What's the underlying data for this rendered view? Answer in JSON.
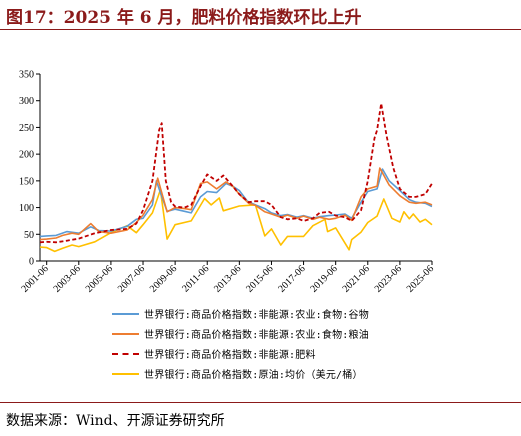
{
  "header": {
    "title": "图17：2025 年 6 月，肥料价格指数环比上升"
  },
  "footer": {
    "source": "数据来源：Wind、开源证券研究所"
  },
  "chart_data": {
    "type": "line",
    "title": "",
    "xlabel": "",
    "ylabel": "",
    "ylim": [
      0,
      350
    ],
    "yticks": [
      0,
      50,
      100,
      150,
      200,
      250,
      300,
      350
    ],
    "xlim": [
      "2001-01",
      "2025-06"
    ],
    "xticks": [
      "2001-06",
      "2003-06",
      "2005-06",
      "2007-06",
      "2009-06",
      "2011-06",
      "2013-06",
      "2015-06",
      "2017-06",
      "2019-06",
      "2021-06",
      "2023-06",
      "2025-06"
    ],
    "grid": false,
    "legend_position": "bottom",
    "series": [
      {
        "name": "世界银行:商品价格指数:非能源:农业:食物:谷物",
        "color": "#5b9bd5",
        "style": "solid",
        "points": [
          [
            "2001-01",
            46
          ],
          [
            "2001-06",
            47
          ],
          [
            "2002-01",
            48
          ],
          [
            "2002-09",
            55
          ],
          [
            "2003-06",
            52
          ],
          [
            "2004-03",
            64
          ],
          [
            "2004-09",
            57
          ],
          [
            "2005-06",
            56
          ],
          [
            "2006-06",
            65
          ],
          [
            "2007-01",
            78
          ],
          [
            "2007-06",
            80
          ],
          [
            "2008-01",
            105
          ],
          [
            "2008-04",
            150
          ],
          [
            "2008-07",
            128
          ],
          [
            "2008-12",
            93
          ],
          [
            "2009-06",
            97
          ],
          [
            "2010-01",
            93
          ],
          [
            "2010-06",
            90
          ],
          [
            "2011-01",
            120
          ],
          [
            "2011-06",
            130
          ],
          [
            "2012-01",
            128
          ],
          [
            "2012-08",
            145
          ],
          [
            "2013-01",
            140
          ],
          [
            "2013-06",
            132
          ],
          [
            "2013-12",
            112
          ],
          [
            "2014-06",
            105
          ],
          [
            "2015-01",
            98
          ],
          [
            "2015-06",
            90
          ],
          [
            "2016-01",
            85
          ],
          [
            "2016-06",
            87
          ],
          [
            "2017-01",
            82
          ],
          [
            "2017-06",
            85
          ],
          [
            "2018-01",
            80
          ],
          [
            "2018-06",
            83
          ],
          [
            "2019-01",
            85
          ],
          [
            "2019-06",
            86
          ],
          [
            "2020-01",
            88
          ],
          [
            "2020-06",
            80
          ],
          [
            "2021-01",
            110
          ],
          [
            "2021-06",
            130
          ],
          [
            "2022-01",
            135
          ],
          [
            "2022-05",
            172
          ],
          [
            "2022-10",
            150
          ],
          [
            "2023-06",
            132
          ],
          [
            "2024-01",
            115
          ],
          [
            "2024-06",
            110
          ],
          [
            "2025-01",
            108
          ],
          [
            "2025-06",
            102
          ]
        ]
      },
      {
        "name": "世界银行:商品价格指数:非能源:农业:食物:粮油",
        "color": "#ed7d31",
        "style": "solid",
        "points": [
          [
            "2001-01",
            40
          ],
          [
            "2001-06",
            41
          ],
          [
            "2002-01",
            43
          ],
          [
            "2002-06",
            48
          ],
          [
            "2003-01",
            52
          ],
          [
            "2003-06",
            50
          ],
          [
            "2004-03",
            70
          ],
          [
            "2004-09",
            55
          ],
          [
            "2005-06",
            52
          ],
          [
            "2006-06",
            58
          ],
          [
            "2007-01",
            72
          ],
          [
            "2007-06",
            86
          ],
          [
            "2008-01",
            115
          ],
          [
            "2008-05",
            155
          ],
          [
            "2008-12",
            92
          ],
          [
            "2009-06",
            100
          ],
          [
            "2010-01",
            98
          ],
          [
            "2010-06",
            96
          ],
          [
            "2011-01",
            145
          ],
          [
            "2011-06",
            148
          ],
          [
            "2012-01",
            135
          ],
          [
            "2012-08",
            148
          ],
          [
            "2013-01",
            140
          ],
          [
            "2013-06",
            125
          ],
          [
            "2014-01",
            108
          ],
          [
            "2014-06",
            104
          ],
          [
            "2015-01",
            92
          ],
          [
            "2015-06",
            88
          ],
          [
            "2016-01",
            82
          ],
          [
            "2016-06",
            86
          ],
          [
            "2017-01",
            80
          ],
          [
            "2017-06",
            84
          ],
          [
            "2018-01",
            78
          ],
          [
            "2018-06",
            82
          ],
          [
            "2019-01",
            78
          ],
          [
            "2019-06",
            80
          ],
          [
            "2020-01",
            86
          ],
          [
            "2020-06",
            76
          ],
          [
            "2021-01",
            120
          ],
          [
            "2021-06",
            135
          ],
          [
            "2022-01",
            140
          ],
          [
            "2022-03",
            174
          ],
          [
            "2022-10",
            142
          ],
          [
            "2023-06",
            122
          ],
          [
            "2024-01",
            110
          ],
          [
            "2024-06",
            108
          ],
          [
            "2025-01",
            110
          ],
          [
            "2025-06",
            105
          ]
        ]
      },
      {
        "name": "世界银行:商品价格指数:非能源:肥料",
        "color": "#c00000",
        "style": "dashed",
        "points": [
          [
            "2001-01",
            35
          ],
          [
            "2001-06",
            36
          ],
          [
            "2002-01",
            35
          ],
          [
            "2002-09",
            38
          ],
          [
            "2003-06",
            42
          ],
          [
            "2004-06",
            52
          ],
          [
            "2005-06",
            58
          ],
          [
            "2006-06",
            60
          ],
          [
            "2007-01",
            70
          ],
          [
            "2007-06",
            95
          ],
          [
            "2008-01",
            150
          ],
          [
            "2008-06",
            245
          ],
          [
            "2008-08",
            258
          ],
          [
            "2008-11",
            150
          ],
          [
            "2009-03",
            110
          ],
          [
            "2009-06",
            102
          ],
          [
            "2010-01",
            100
          ],
          [
            "2010-06",
            105
          ],
          [
            "2011-01",
            140
          ],
          [
            "2011-06",
            162
          ],
          [
            "2012-01",
            150
          ],
          [
            "2012-06",
            160
          ],
          [
            "2013-01",
            140
          ],
          [
            "2013-06",
            125
          ],
          [
            "2014-01",
            110
          ],
          [
            "2014-06",
            112
          ],
          [
            "2015-01",
            112
          ],
          [
            "2015-06",
            105
          ],
          [
            "2016-01",
            82
          ],
          [
            "2016-06",
            78
          ],
          [
            "2017-01",
            80
          ],
          [
            "2017-06",
            75
          ],
          [
            "2018-01",
            80
          ],
          [
            "2018-06",
            90
          ],
          [
            "2019-01",
            92
          ],
          [
            "2019-06",
            85
          ],
          [
            "2020-01",
            82
          ],
          [
            "2020-06",
            75
          ],
          [
            "2021-01",
            95
          ],
          [
            "2021-06",
            150
          ],
          [
            "2021-11",
            230
          ],
          [
            "2022-01",
            245
          ],
          [
            "2022-04",
            295
          ],
          [
            "2022-08",
            235
          ],
          [
            "2023-01",
            175
          ],
          [
            "2023-06",
            135
          ],
          [
            "2024-01",
            120
          ],
          [
            "2024-06",
            120
          ],
          [
            "2025-01",
            125
          ],
          [
            "2025-06",
            145
          ]
        ]
      },
      {
        "name": "世界银行:商品价格指数:原油:均价（美元/桶）",
        "color": "#ffc000",
        "style": "solid",
        "points": [
          [
            "2001-01",
            26
          ],
          [
            "2001-06",
            25
          ],
          [
            "2001-12",
            18
          ],
          [
            "2002-06",
            24
          ],
          [
            "2003-01",
            30
          ],
          [
            "2003-06",
            27
          ],
          [
            "2004-06",
            36
          ],
          [
            "2005-06",
            53
          ],
          [
            "2006-06",
            66
          ],
          [
            "2007-01",
            53
          ],
          [
            "2007-06",
            68
          ],
          [
            "2008-01",
            90
          ],
          [
            "2008-07",
            133
          ],
          [
            "2008-12",
            41
          ],
          [
            "2009-06",
            68
          ],
          [
            "2010-06",
            75
          ],
          [
            "2011-04",
            117
          ],
          [
            "2011-09",
            105
          ],
          [
            "2012-03",
            118
          ],
          [
            "2012-06",
            94
          ],
          [
            "2013-06",
            103
          ],
          [
            "2014-06",
            105
          ],
          [
            "2015-01",
            47
          ],
          [
            "2015-06",
            60
          ],
          [
            "2016-01",
            30
          ],
          [
            "2016-06",
            46
          ],
          [
            "2017-06",
            46
          ],
          [
            "2018-01",
            66
          ],
          [
            "2018-10",
            78
          ],
          [
            "2018-12",
            55
          ],
          [
            "2019-06",
            62
          ],
          [
            "2020-04",
            21
          ],
          [
            "2020-06",
            40
          ],
          [
            "2021-01",
            54
          ],
          [
            "2021-06",
            72
          ],
          [
            "2022-01",
            84
          ],
          [
            "2022-06",
            116
          ],
          [
            "2022-12",
            80
          ],
          [
            "2023-06",
            73
          ],
          [
            "2023-09",
            92
          ],
          [
            "2024-01",
            79
          ],
          [
            "2024-04",
            88
          ],
          [
            "2024-09",
            73
          ],
          [
            "2025-01",
            78
          ],
          [
            "2025-06",
            68
          ]
        ]
      }
    ]
  }
}
